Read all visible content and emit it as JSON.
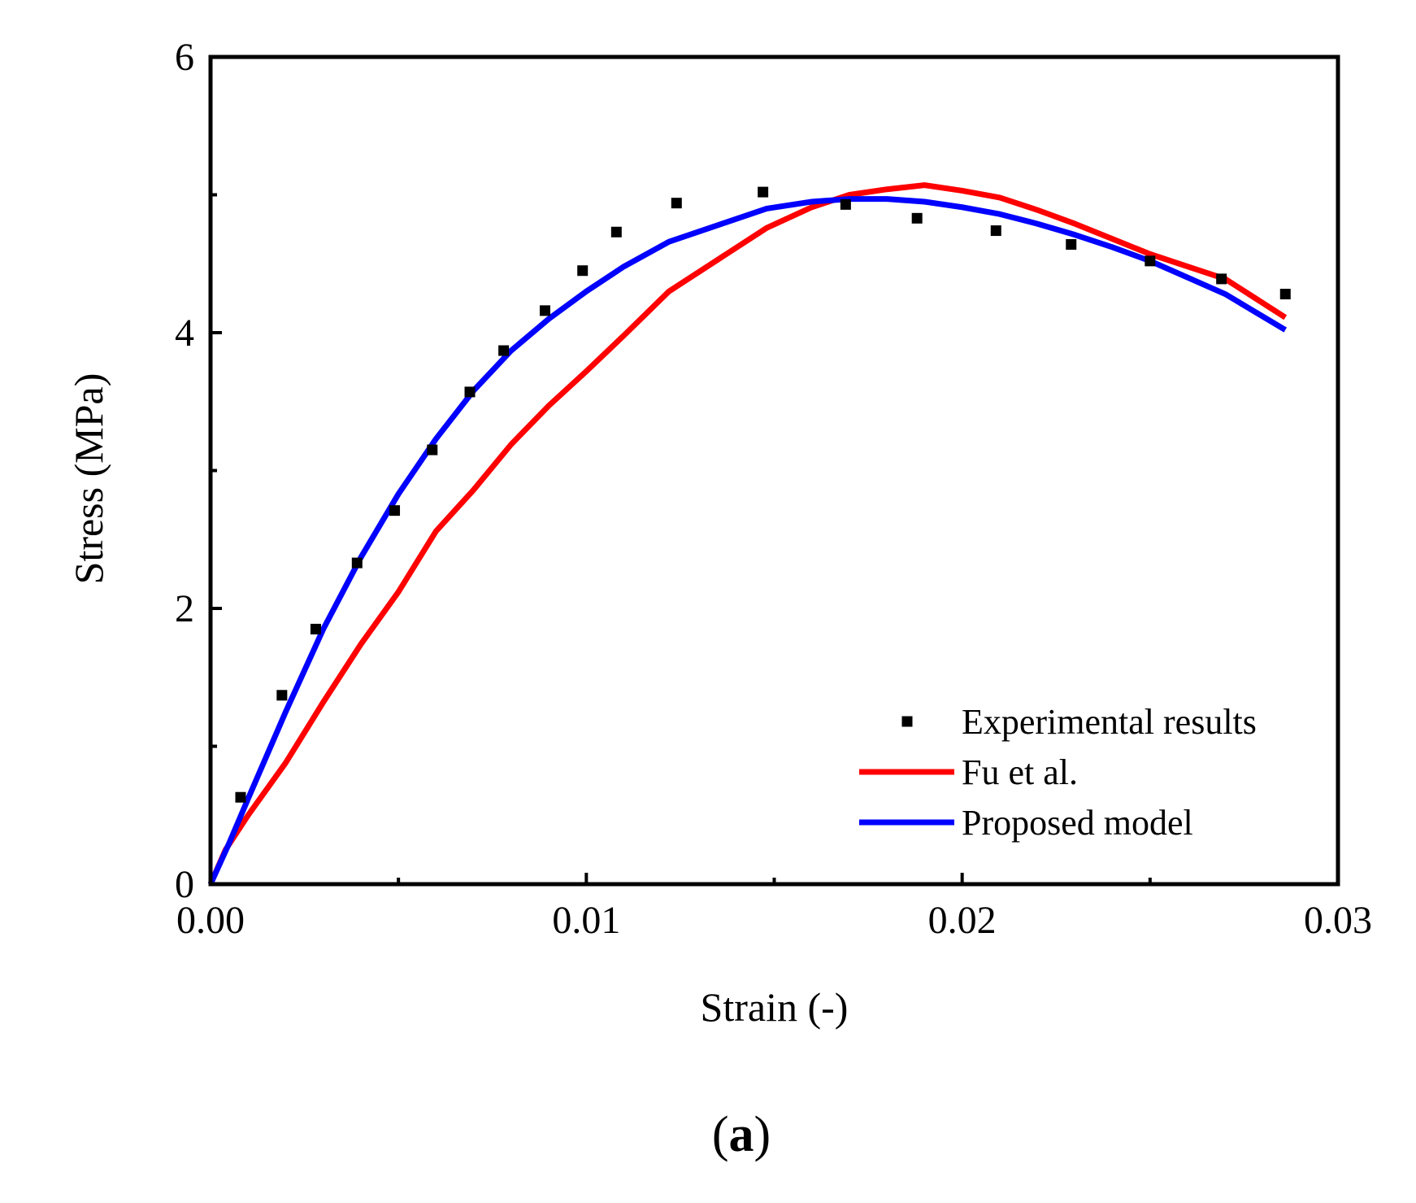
{
  "chart_data": {
    "type": "scatter",
    "title": "",
    "xlabel": "Strain (-)",
    "ylabel": "Stress (MPa)",
    "xlim": [
      0,
      0.03
    ],
    "ylim": [
      0,
      6
    ],
    "x_ticks": [
      0,
      0.01,
      0.02,
      0.03
    ],
    "x_tick_labels": [
      "0.00",
      "0.01",
      "0.02",
      "0.03"
    ],
    "y_ticks": [
      0,
      2,
      4,
      6
    ],
    "y_tick_labels": [
      "0",
      "2",
      "4",
      "6"
    ],
    "grid": false,
    "legend_position": "bottom-right",
    "panel_label": "a",
    "colors": {
      "experimental": "#000000",
      "fu": "#ff0000",
      "proposed": "#0000ff"
    },
    "series": [
      {
        "name": "Experimental results",
        "kind": "markers",
        "color": "#000000",
        "x": [
          0.0008,
          0.0019,
          0.0028,
          0.0039,
          0.0049,
          0.0059,
          0.0069,
          0.0078,
          0.0089,
          0.0099,
          0.0108,
          0.0124,
          0.0147,
          0.0169,
          0.0188,
          0.0209,
          0.0229,
          0.025,
          0.0269,
          0.0286
        ],
        "y": [
          0.63,
          1.37,
          1.85,
          2.33,
          2.71,
          3.15,
          3.57,
          3.87,
          4.16,
          4.45,
          4.73,
          4.94,
          5.02,
          4.93,
          4.83,
          4.74,
          4.64,
          4.52,
          4.39,
          4.28
        ]
      },
      {
        "name": "Fu et al.",
        "kind": "line",
        "color": "#ff0000",
        "x": [
          0,
          0.0004,
          0.001,
          0.002,
          0.003,
          0.004,
          0.005,
          0.006,
          0.007,
          0.008,
          0.009,
          0.01,
          0.011,
          0.0122,
          0.0135,
          0.0148,
          0.016,
          0.017,
          0.018,
          0.019,
          0.02,
          0.021,
          0.022,
          0.023,
          0.024,
          0.025,
          0.026,
          0.027,
          0.0278,
          0.0286
        ],
        "y": [
          0,
          0.25,
          0.5,
          0.88,
          1.32,
          1.74,
          2.12,
          2.56,
          2.86,
          3.19,
          3.47,
          3.72,
          3.98,
          4.3,
          4.53,
          4.76,
          4.91,
          5.0,
          5.04,
          5.07,
          5.03,
          4.98,
          4.89,
          4.79,
          4.68,
          4.57,
          4.48,
          4.39,
          4.25,
          4.11
        ]
      },
      {
        "name": "Proposed model",
        "kind": "line",
        "color": "#0000ff",
        "x": [
          0,
          0.0005,
          0.001,
          0.002,
          0.003,
          0.004,
          0.005,
          0.006,
          0.007,
          0.008,
          0.009,
          0.01,
          0.011,
          0.0122,
          0.0135,
          0.0148,
          0.016,
          0.017,
          0.018,
          0.019,
          0.02,
          0.021,
          0.022,
          0.023,
          0.024,
          0.025,
          0.026,
          0.027,
          0.0278,
          0.0286
        ],
        "y": [
          0,
          0.3,
          0.62,
          1.25,
          1.85,
          2.37,
          2.83,
          3.23,
          3.58,
          3.87,
          4.1,
          4.3,
          4.48,
          4.66,
          4.78,
          4.9,
          4.95,
          4.97,
          4.97,
          4.95,
          4.91,
          4.86,
          4.79,
          4.71,
          4.62,
          4.52,
          4.4,
          4.28,
          4.15,
          4.02
        ]
      }
    ]
  }
}
